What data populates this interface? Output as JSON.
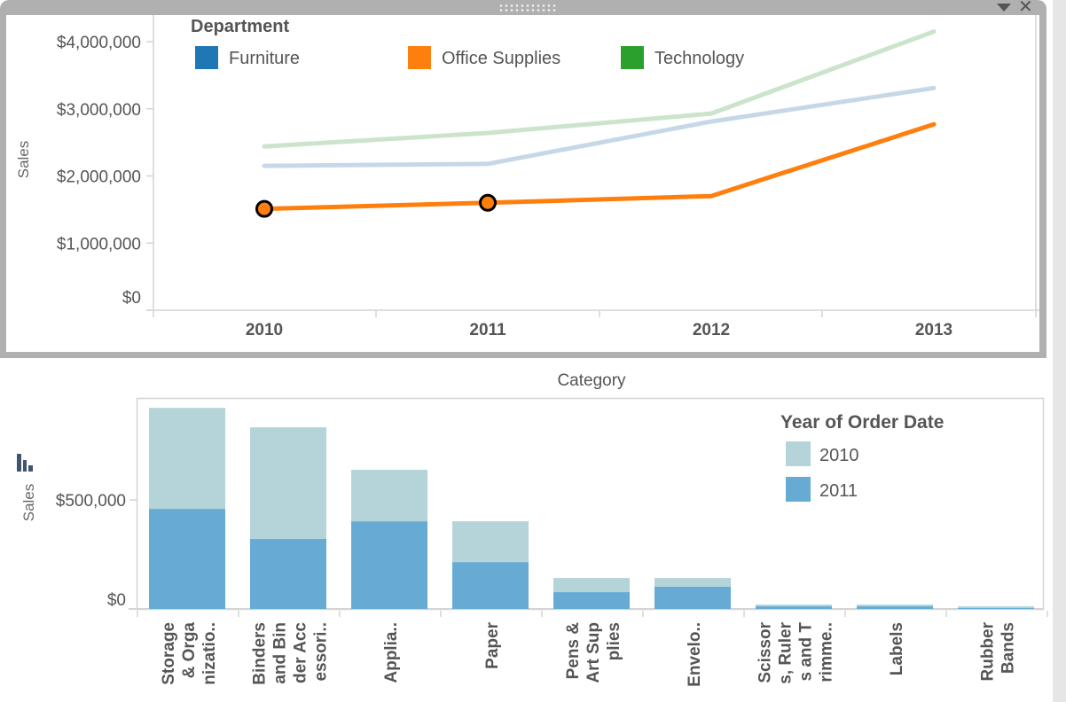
{
  "panel": {
    "menu_icon": "dropdown-triangle-icon",
    "close_icon": "close-icon",
    "close_glyph": "✕",
    "grip_icon": "drag-grip-icon"
  },
  "chart_data": [
    {
      "type": "line",
      "title": "",
      "xlabel": "",
      "ylabel": "Sales",
      "x": [
        "2010",
        "2011",
        "2012",
        "2013"
      ],
      "ylim": [
        0,
        4000000
      ],
      "y_ticks": [
        0,
        1000000,
        2000000,
        3000000,
        4000000
      ],
      "y_tick_labels": [
        "$0",
        "$1,000,000",
        "$2,000,000",
        "$3,000,000",
        "$4,000,000"
      ],
      "legend": {
        "title": "Department",
        "placement": "top",
        "entries": [
          {
            "name": "Furniture",
            "color": "#1f77b4"
          },
          {
            "name": "Office Supplies",
            "color": "#ff7f0e"
          },
          {
            "name": "Technology",
            "color": "#2ca02c"
          }
        ]
      },
      "series": [
        {
          "name": "Furniture",
          "color": "#c6d8e8",
          "highlighted": false,
          "values": [
            2150000,
            2180000,
            2810000,
            3310000
          ]
        },
        {
          "name": "Office Supplies",
          "color": "#ff7f0e",
          "highlighted": true,
          "values": [
            1510000,
            1600000,
            1700000,
            2770000
          ]
        },
        {
          "name": "Technology",
          "color": "#cbe4cb",
          "highlighted": false,
          "values": [
            2440000,
            2640000,
            2930000,
            4150000
          ]
        }
      ],
      "selected_points": [
        {
          "series": "Office Supplies",
          "x": "2010"
        },
        {
          "series": "Office Supplies",
          "x": "2011"
        }
      ],
      "grid": false
    },
    {
      "type": "bar",
      "stacked": true,
      "title": "",
      "xlabel": "Category",
      "ylabel": "Sales",
      "ylim": [
        0,
        950000
      ],
      "y_ticks": [
        0,
        500000
      ],
      "y_tick_labels": [
        "$0",
        "$500,000"
      ],
      "categories": [
        "Storage & Organizatio..",
        "Binders and Binder Accessori..",
        "Applia..",
        "Paper",
        "Pens & Art Supplies",
        "Envelo..",
        "Scissors, Rulers and Trimme..",
        "Labels",
        "Rubber Bands"
      ],
      "category_label_lines": [
        [
          "Storage",
          "& Orga",
          "nizatio.."
        ],
        [
          "Binders",
          "and Bin",
          "der Acc",
          "essori.."
        ],
        [
          "Applia.."
        ],
        [
          "Paper"
        ],
        [
          "Pens &",
          "Art Sup",
          "plies"
        ],
        [
          "Envelo.."
        ],
        [
          "Scissor",
          "s, Ruler",
          "s and T",
          "rimme.."
        ],
        [
          "Labels"
        ],
        [
          "Rubber",
          "Bands"
        ]
      ],
      "legend": {
        "title": "Year of Order Date",
        "placement": "top-right",
        "entries": [
          {
            "name": "2010",
            "color": "#b5d4da"
          },
          {
            "name": "2011",
            "color": "#67abd5"
          }
        ]
      },
      "series": [
        {
          "name": "2011",
          "color": "#67abd5",
          "values": [
            459000,
            321000,
            402000,
            215000,
            77000,
            102000,
            12000,
            12000,
            4000
          ]
        },
        {
          "name": "2010",
          "color": "#b5d4da",
          "values": [
            463000,
            512000,
            236000,
            187000,
            65000,
            40000,
            8000,
            8000,
            8000
          ]
        }
      ],
      "axis_icon": "bar-chart-icon",
      "grid": false
    }
  ]
}
